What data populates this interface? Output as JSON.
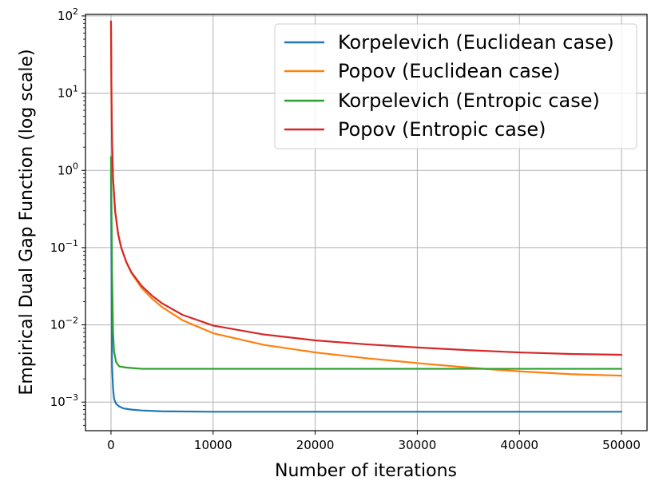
{
  "chart_data": {
    "type": "line",
    "title": "",
    "xlabel": "Number of iterations",
    "ylabel": "Empirical Dual Gap Function (log scale)",
    "xlim": [
      -2500,
      52500
    ],
    "ylim_log10": [
      -3.37,
      2.02
    ],
    "yscale": "log",
    "grid": true,
    "legend_position": "top-right",
    "x_ticks": [
      {
        "value": 0,
        "label": "0"
      },
      {
        "value": 10000,
        "label": "10000"
      },
      {
        "value": 20000,
        "label": "20000"
      },
      {
        "value": 30000,
        "label": "30000"
      },
      {
        "value": 40000,
        "label": "40000"
      },
      {
        "value": 50000,
        "label": "50000"
      }
    ],
    "y_ticks": [
      {
        "exp": 2,
        "base": "10",
        "sup": "2"
      },
      {
        "exp": 1,
        "base": "10",
        "sup": "1"
      },
      {
        "exp": 0,
        "base": "10",
        "sup": "0"
      },
      {
        "exp": -1,
        "base": "10",
        "sup": "−1"
      },
      {
        "exp": -2,
        "base": "10",
        "sup": "−2"
      },
      {
        "exp": -3,
        "base": "10",
        "sup": "−3"
      }
    ],
    "series": [
      {
        "name": "Korpelevich (Euclidean case)",
        "color": "#1f77b4",
        "x": [
          0,
          100,
          200,
          300,
          500,
          800,
          1200,
          2000,
          3000,
          5000,
          10000,
          20000,
          30000,
          40000,
          50000
        ],
        "y": [
          1.0,
          0.003,
          0.0015,
          0.0011,
          0.00095,
          0.00088,
          0.00083,
          0.0008,
          0.00078,
          0.00076,
          0.00075,
          0.00075,
          0.00075,
          0.00075,
          0.00075
        ]
      },
      {
        "name": "Popov (Euclidean case)",
        "color": "#ff7f0e",
        "x": [
          0,
          50,
          100,
          200,
          400,
          700,
          1000,
          1500,
          2000,
          3000,
          4000,
          5000,
          7000,
          10000,
          15000,
          20000,
          25000,
          30000,
          35000,
          40000,
          45000,
          50000
        ],
        "y": [
          85,
          8,
          2.5,
          0.8,
          0.3,
          0.15,
          0.1,
          0.065,
          0.047,
          0.03,
          0.022,
          0.017,
          0.0115,
          0.0078,
          0.0055,
          0.0044,
          0.0037,
          0.0032,
          0.0028,
          0.0025,
          0.0023,
          0.0022
        ]
      },
      {
        "name": "Korpelevich (Entropic case)",
        "color": "#2ca02c",
        "x": [
          0,
          50,
          100,
          200,
          300,
          500,
          800,
          1500,
          3000,
          5000,
          10000,
          20000,
          30000,
          40000,
          50000
        ],
        "y": [
          1.5,
          0.3,
          0.05,
          0.008,
          0.0045,
          0.0033,
          0.0029,
          0.0028,
          0.0027,
          0.0027,
          0.0027,
          0.0027,
          0.0027,
          0.0027,
          0.0027
        ]
      },
      {
        "name": "Popov (Entropic case)",
        "color": "#d62728",
        "x": [
          0,
          50,
          100,
          200,
          400,
          700,
          1000,
          1500,
          2000,
          3000,
          4000,
          5000,
          7000,
          10000,
          15000,
          20000,
          25000,
          30000,
          35000,
          40000,
          45000,
          50000
        ],
        "y": [
          85,
          8,
          2.5,
          0.8,
          0.3,
          0.15,
          0.1,
          0.065,
          0.048,
          0.032,
          0.024,
          0.019,
          0.0135,
          0.0098,
          0.0075,
          0.0063,
          0.0056,
          0.0051,
          0.0047,
          0.0044,
          0.0042,
          0.0041
        ]
      }
    ]
  }
}
